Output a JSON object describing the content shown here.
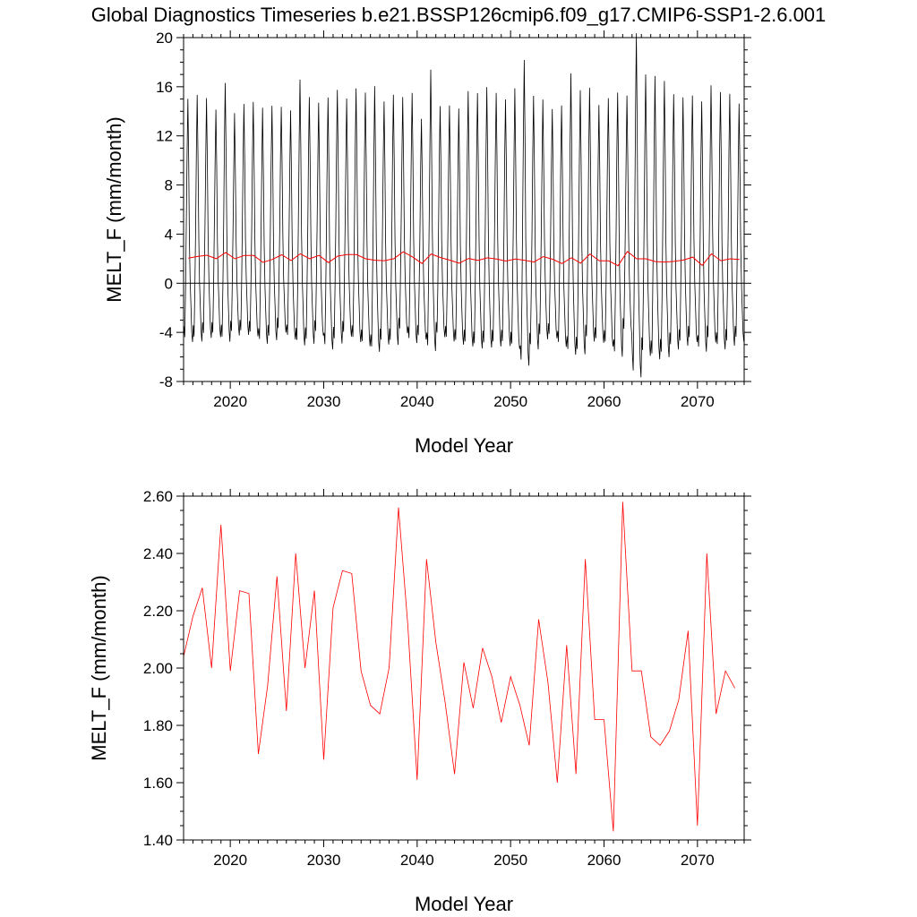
{
  "title": "Global Diagnostics Timeseries b.e21.BSSP126cmip6.f09_g17.CMIP6-SSP1-2.6.001",
  "colors": {
    "monthly": "#000000",
    "annual": "#ff0000",
    "axis": "#000000"
  },
  "chart_data": [
    {
      "type": "line",
      "xlabel": "Model Year",
      "ylabel": "MELT_F (mm/month)",
      "xlim": [
        2015,
        2075
      ],
      "ylim": [
        -8,
        20
      ],
      "x_ticks": [
        2020,
        2030,
        2040,
        2050,
        2060,
        2070
      ],
      "x_tick_labels": [
        "2020",
        "2030",
        "2040",
        "2050",
        "2060",
        "2070"
      ],
      "y_ticks": [
        -8,
        -4,
        0,
        4,
        8,
        12,
        16,
        20
      ],
      "y_tick_labels": [
        "-8",
        "-4",
        "0",
        "4",
        "8",
        "12",
        "16",
        "20"
      ],
      "reference_line": 0,
      "monthly_pattern": [
        -4.5,
        -5.4,
        -1.5,
        3.5,
        9.5,
        14.0,
        9.0,
        2.5,
        -1.0,
        -3.0,
        -5.0,
        -5.8
      ],
      "monthly_peaks": [
        14.0,
        14.2,
        13.8,
        13.1,
        14.9,
        12.8,
        13.3,
        13.5,
        13.6,
        13.5,
        13.0,
        13.2,
        15.3,
        14.2,
        13.4,
        14.5,
        14.6,
        13.7,
        14.6,
        14.6,
        15.3,
        14.0,
        14.4,
        13.6,
        14.4,
        12.7,
        16.2,
        13.3,
        13.6,
        13.6,
        14.7,
        14.7,
        15.0,
        14.6,
        14.2,
        15.0,
        17.6,
        14.6,
        13.8,
        13.2,
        13.9,
        16.2,
        15.2,
        14.6,
        13.7,
        14.3,
        15.2,
        13.7,
        19.8,
        16.2,
        16.3,
        15.9,
        14.7,
        14.3,
        14.2,
        14.4,
        14.8,
        14.8,
        14.5,
        13.7
      ],
      "series": [
        {
          "name": "",
          "type": "monthly",
          "values": []
        },
        {
          "name": "",
          "type": "annual",
          "values": [
            2.04,
            2.18,
            2.28,
            2.0,
            2.5,
            1.99,
            2.27,
            2.26,
            1.7,
            1.94,
            2.32,
            1.85,
            2.4,
            2.0,
            2.27,
            1.68,
            2.21,
            2.34,
            2.33,
            1.99,
            1.87,
            1.84,
            2.0,
            2.56,
            2.15,
            1.61,
            2.38,
            2.09,
            1.88,
            1.63,
            2.02,
            1.86,
            2.07,
            1.97,
            1.81,
            1.97,
            1.87,
            1.73,
            2.17,
            1.95,
            1.6,
            2.08,
            1.63,
            2.38,
            1.82,
            1.82,
            1.43,
            2.58,
            1.99,
            1.99,
            1.76,
            1.73,
            1.78,
            1.89,
            2.13,
            1.45,
            2.4,
            1.84,
            1.99,
            1.93
          ]
        }
      ]
    },
    {
      "type": "line",
      "xlabel": "Model Year",
      "ylabel": "MELT_F (mm/month)",
      "xlim": [
        2015,
        2075
      ],
      "ylim": [
        1.4,
        2.6
      ],
      "x_ticks": [
        2020,
        2030,
        2040,
        2050,
        2060,
        2070
      ],
      "x_tick_labels": [
        "2020",
        "2030",
        "2040",
        "2050",
        "2060",
        "2070"
      ],
      "y_ticks": [
        1.4,
        1.6,
        1.8,
        2.0,
        2.2,
        2.4,
        2.6
      ],
      "y_tick_labels": [
        "1.40",
        "1.60",
        "1.80",
        "2.00",
        "2.20",
        "2.40",
        "2.60"
      ],
      "series": [
        {
          "name": "",
          "x": [
            2015.0,
            2016.0,
            2017.0,
            2018.0,
            2019.0,
            2020.0,
            2021.0,
            2022.0,
            2023.0,
            2024.0,
            2025.0,
            2026.0,
            2027.0,
            2028.0,
            2029.0,
            2030.0,
            2031.0,
            2032.0,
            2033.0,
            2034.0,
            2035.0,
            2036.0,
            2037.0,
            2038.0,
            2039.0,
            2040.0,
            2041.0,
            2042.0,
            2043.0,
            2044.0,
            2045.0,
            2046.0,
            2047.0,
            2048.0,
            2049.0,
            2050.0,
            2051.0,
            2052.0,
            2053.0,
            2054.0,
            2055.0,
            2056.0,
            2057.0,
            2058.0,
            2059.0,
            2060.0,
            2061.0,
            2062.0,
            2063.0,
            2064.0,
            2065.0,
            2066.0,
            2067.0,
            2068.0,
            2069.0,
            2070.0,
            2071.0,
            2072.0,
            2073.0,
            2074.0
          ],
          "values": [
            2.04,
            2.18,
            2.28,
            2.0,
            2.5,
            1.99,
            2.27,
            2.26,
            1.7,
            1.94,
            2.32,
            1.85,
            2.4,
            2.0,
            2.27,
            1.68,
            2.21,
            2.34,
            2.33,
            1.99,
            1.87,
            1.84,
            2.0,
            2.56,
            2.15,
            1.61,
            2.38,
            2.09,
            1.88,
            1.63,
            2.02,
            1.86,
            2.07,
            1.97,
            1.81,
            1.97,
            1.87,
            1.73,
            2.17,
            1.95,
            1.6,
            2.08,
            1.63,
            2.38,
            1.82,
            1.82,
            1.43,
            2.58,
            1.99,
            1.99,
            1.76,
            1.73,
            1.78,
            1.89,
            2.13,
            1.45,
            2.4,
            1.84,
            1.99,
            1.93
          ]
        }
      ]
    }
  ]
}
